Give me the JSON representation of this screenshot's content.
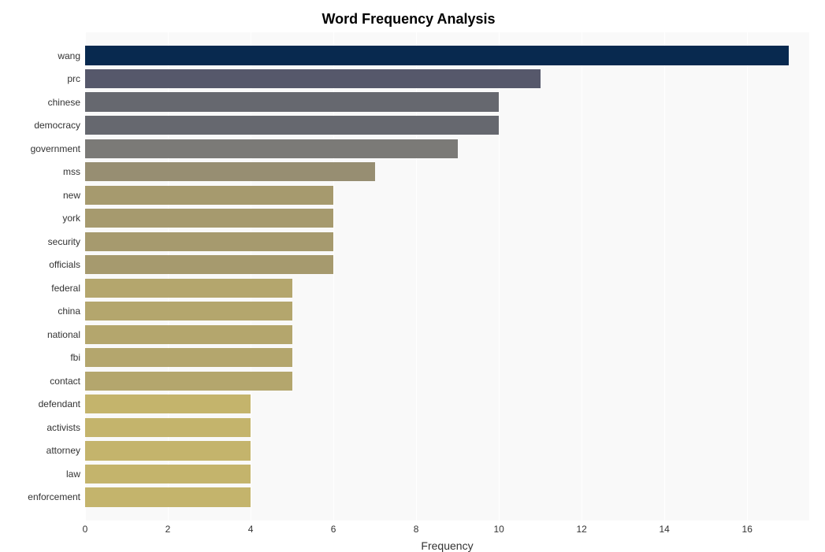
{
  "chart": {
    "type": "bar-horizontal",
    "title": "Word Frequency Analysis",
    "title_fontsize": 18,
    "title_fontweight": "bold",
    "title_color": "#000000",
    "xlabel": "Frequency",
    "xlabel_fontsize": 14,
    "xlabel_color": "#333333",
    "xlim": [
      0,
      17.5
    ],
    "xtick_step": 2,
    "xticks": [
      0,
      2,
      4,
      6,
      8,
      10,
      12,
      14,
      16
    ],
    "tick_fontsize": 12,
    "tick_color": "#333333",
    "background_color": "#ffffff",
    "plot_background_color": "#f9f9f9",
    "grid_color": "#ffffff",
    "grid_width": 1,
    "bar_rel_height": 0.82,
    "categories": [
      "wang",
      "prc",
      "chinese",
      "democracy",
      "government",
      "mss",
      "new",
      "york",
      "security",
      "officials",
      "federal",
      "china",
      "national",
      "fbi",
      "contact",
      "defendant",
      "activists",
      "attorney",
      "law",
      "enforcement"
    ],
    "values": [
      17,
      11,
      10,
      10,
      9,
      7,
      6,
      6,
      6,
      6,
      5,
      5,
      5,
      5,
      5,
      4,
      4,
      4,
      4,
      4
    ],
    "bar_colors": [
      "#08294f",
      "#56586b",
      "#66686f",
      "#66686f",
      "#7b7a77",
      "#978e72",
      "#a69a6e",
      "#a69a6e",
      "#a69a6e",
      "#a69a6e",
      "#b4a66d",
      "#b4a66d",
      "#b4a66d",
      "#b4a66d",
      "#b4a66d",
      "#c4b46c",
      "#c4b46c",
      "#c4b46c",
      "#c4b46c",
      "#c4b46c"
    ]
  }
}
